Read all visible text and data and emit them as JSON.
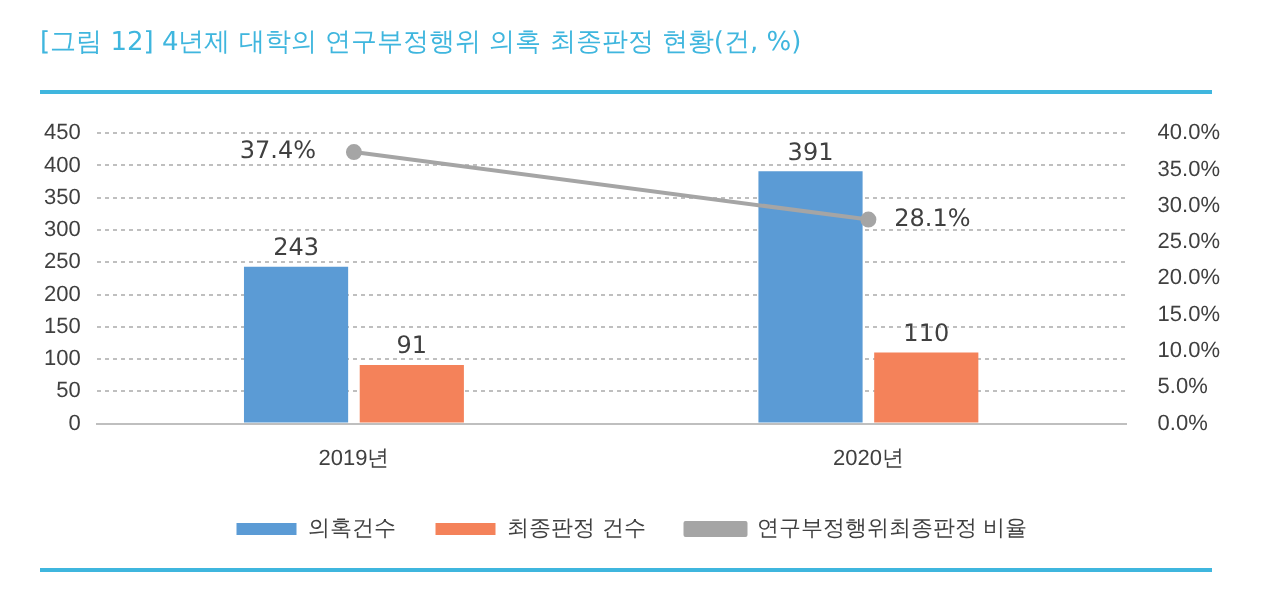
{
  "chart_data": {
    "type": "bar",
    "title": "[그림 12] 4년제 대학의 연구부정행위 의혹 최종판정 현황(건, %)",
    "categories": [
      "2019년",
      "2020년"
    ],
    "series": [
      {
        "name": "의혹건수",
        "color": "#5b9bd5",
        "values": [
          243,
          391
        ],
        "value_labels": [
          "243",
          "391"
        ]
      },
      {
        "name": "최종판정 건수",
        "color": "#f4825a",
        "values": [
          91,
          110
        ],
        "value_labels": [
          "91",
          "110"
        ]
      },
      {
        "name": "연구부정행위최종판정 비율",
        "type": "line",
        "axis": "y2",
        "color": "#a5a5a5",
        "marker": "circle",
        "values": [
          37.4,
          28.1
        ],
        "value_labels": [
          "37.4%",
          "28.1%"
        ]
      }
    ],
    "ylim": [
      0,
      450
    ],
    "yticks": [
      0,
      50,
      100,
      150,
      200,
      250,
      300,
      350,
      400,
      450
    ],
    "y2lim": [
      0,
      40
    ],
    "y2ticks": [
      {
        "value": 0,
        "label": "0.0%"
      },
      {
        "value": 5,
        "label": "5.0%"
      },
      {
        "value": 10,
        "label": "10.0%"
      },
      {
        "value": 15,
        "label": "15.0%"
      },
      {
        "value": 20,
        "label": "20.0%"
      },
      {
        "value": 25,
        "label": "25.0%"
      },
      {
        "value": 30,
        "label": "30.0%"
      },
      {
        "value": 35,
        "label": "35.0%"
      },
      {
        "value": 40,
        "label": "40.0%"
      }
    ],
    "grid": "y",
    "legend": "bottom"
  }
}
